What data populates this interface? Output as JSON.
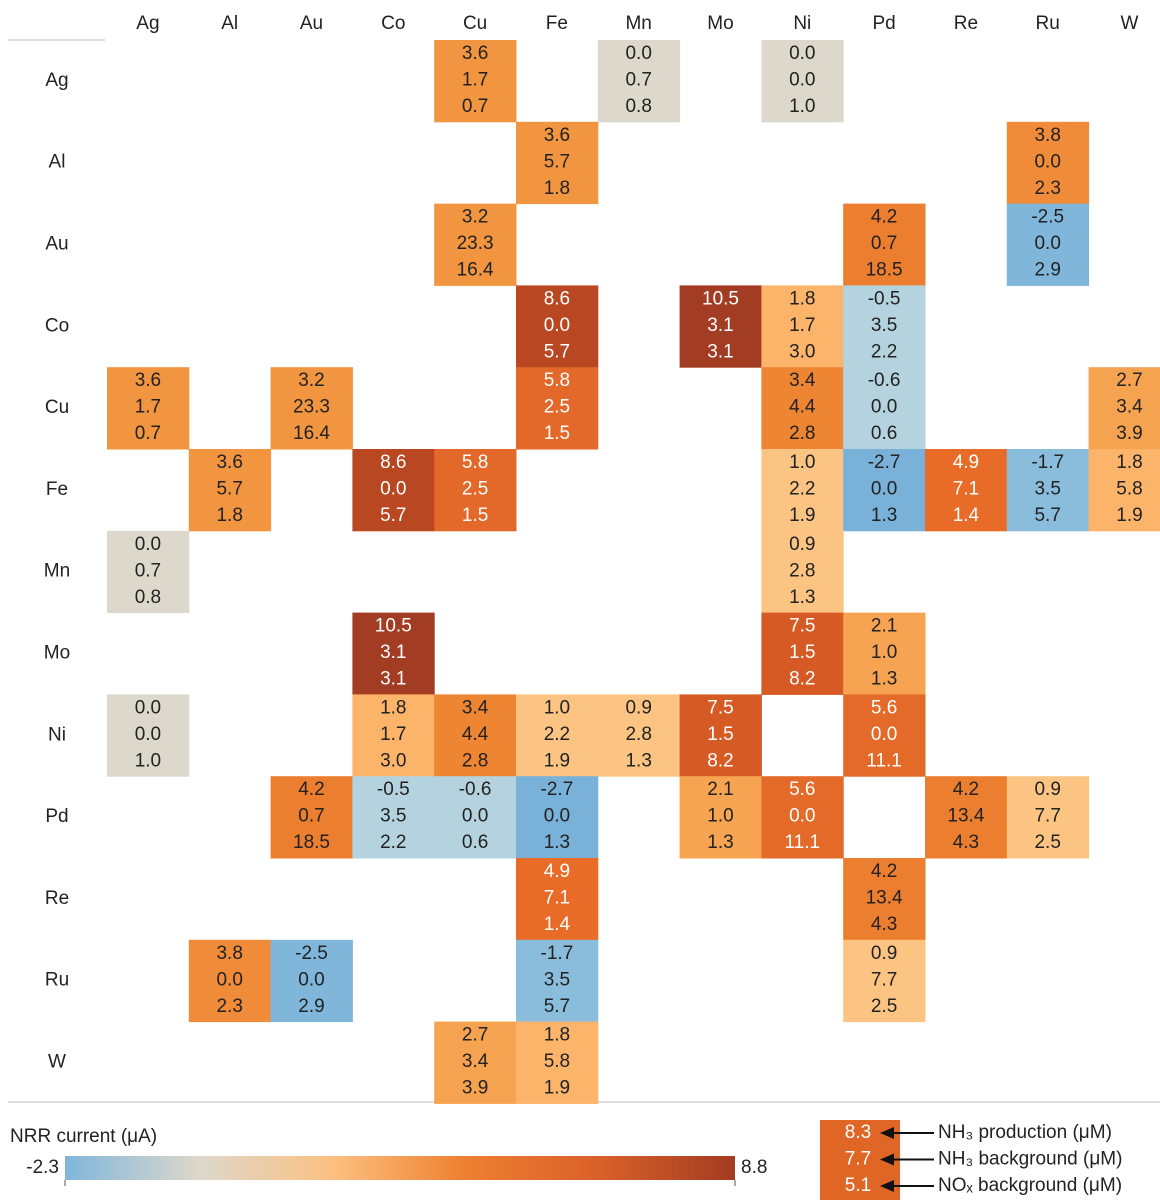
{
  "chart_data": {
    "type": "heatmap",
    "columns": [
      "Ag",
      "Al",
      "Au",
      "Co",
      "Cu",
      "Fe",
      "Mn",
      "Mo",
      "Ni",
      "Pd",
      "Re",
      "Ru",
      "W"
    ],
    "rows": [
      "Ag",
      "Al",
      "Au",
      "Co",
      "Cu",
      "Fe",
      "Mn",
      "Mo",
      "Ni",
      "Pd",
      "Re",
      "Ru",
      "W"
    ],
    "cells": [
      {
        "row": "Ag",
        "col": "Cu",
        "values": [
          3.6,
          1.7,
          0.7
        ],
        "value_labels": [
          "3.6",
          "1.7",
          "0.7"
        ],
        "color": "#f29540"
      },
      {
        "row": "Ag",
        "col": "Mn",
        "values": [
          0,
          0.7,
          0.8
        ],
        "value_labels": [
          "0.0",
          "0.7",
          "0.8"
        ],
        "color": "#dcd8cc"
      },
      {
        "row": "Ag",
        "col": "Ni",
        "values": [
          0,
          0,
          1
        ],
        "value_labels": [
          "0.0",
          "0.0",
          "1.0"
        ],
        "color": "#dcd8cc"
      },
      {
        "row": "Al",
        "col": "Fe",
        "values": [
          3.6,
          5.7,
          1.8
        ],
        "value_labels": [
          "3.6",
          "5.7",
          "1.8"
        ],
        "color": "#f29540"
      },
      {
        "row": "Al",
        "col": "Ru",
        "values": [
          3.8,
          0,
          2.3
        ],
        "value_labels": [
          "3.8",
          "0.0",
          "2.3"
        ],
        "color": "#f08c39"
      },
      {
        "row": "Au",
        "col": "Cu",
        "values": [
          3.2,
          23.3,
          16.4
        ],
        "value_labels": [
          "3.2",
          "23.3",
          "16.4"
        ],
        "color": "#f29540"
      },
      {
        "row": "Au",
        "col": "Pd",
        "values": [
          4.2,
          0.7,
          18.5
        ],
        "value_labels": [
          "4.2",
          "0.7",
          "18.5"
        ],
        "color": "#ec7e30"
      },
      {
        "row": "Au",
        "col": "Ru",
        "values": [
          -2.5,
          0,
          2.9
        ],
        "value_labels": [
          "-2.5",
          "0.0",
          "2.9"
        ],
        "color": "#7fb6da"
      },
      {
        "row": "Co",
        "col": "Fe",
        "values": [
          8.6,
          0,
          5.7
        ],
        "value_labels": [
          "8.6",
          "0.0",
          "5.7"
        ],
        "color": "#b84722"
      },
      {
        "row": "Co",
        "col": "Mo",
        "values": [
          10.5,
          3.1,
          3.1
        ],
        "value_labels": [
          "10.5",
          "3.1",
          "3.1"
        ],
        "color": "#a23c22"
      },
      {
        "row": "Co",
        "col": "Ni",
        "values": [
          1.8,
          1.7,
          3
        ],
        "value_labels": [
          "1.8",
          "1.7",
          "3.0"
        ],
        "color": "#fbb46a"
      },
      {
        "row": "Co",
        "col": "Pd",
        "values": [
          -0.5,
          3.5,
          2.2
        ],
        "value_labels": [
          "-0.5",
          "3.5",
          "2.2"
        ],
        "color": "#b4d3de"
      },
      {
        "row": "Cu",
        "col": "Ag",
        "values": [
          3.6,
          1.7,
          0.7
        ],
        "value_labels": [
          "3.6",
          "1.7",
          "0.7"
        ],
        "color": "#f29540"
      },
      {
        "row": "Cu",
        "col": "Au",
        "values": [
          3.2,
          23.3,
          16.4
        ],
        "value_labels": [
          "3.2",
          "23.3",
          "16.4"
        ],
        "color": "#f29540"
      },
      {
        "row": "Cu",
        "col": "Fe",
        "values": [
          5.8,
          2.5,
          1.5
        ],
        "value_labels": [
          "5.8",
          "2.5",
          "1.5"
        ],
        "color": "#e3692a"
      },
      {
        "row": "Cu",
        "col": "Ni",
        "values": [
          3.4,
          4.4,
          2.8
        ],
        "value_labels": [
          "3.4",
          "4.4",
          "2.8"
        ],
        "color": "#ee8532"
      },
      {
        "row": "Cu",
        "col": "Pd",
        "values": [
          -0.6,
          0,
          0.6
        ],
        "value_labels": [
          "-0.6",
          "0.0",
          "0.6"
        ],
        "color": "#b4d3de"
      },
      {
        "row": "Cu",
        "col": "W",
        "values": [
          2.7,
          3.4,
          3.9
        ],
        "value_labels": [
          "2.7",
          "3.4",
          "3.9"
        ],
        "color": "#f5a350"
      },
      {
        "row": "Fe",
        "col": "Al",
        "values": [
          3.6,
          5.7,
          1.8
        ],
        "value_labels": [
          "3.6",
          "5.7",
          "1.8"
        ],
        "color": "#f29540"
      },
      {
        "row": "Fe",
        "col": "Co",
        "values": [
          8.6,
          0,
          5.7
        ],
        "value_labels": [
          "8.6",
          "0.0",
          "5.7"
        ],
        "color": "#b84722"
      },
      {
        "row": "Fe",
        "col": "Cu",
        "values": [
          5.8,
          2.5,
          1.5
        ],
        "value_labels": [
          "5.8",
          "2.5",
          "1.5"
        ],
        "color": "#e3692a"
      },
      {
        "row": "Fe",
        "col": "Ni",
        "values": [
          1,
          2.2,
          1.9
        ],
        "value_labels": [
          "1.0",
          "2.2",
          "1.9"
        ],
        "color": "#fcc483"
      },
      {
        "row": "Fe",
        "col": "Pd",
        "values": [
          -2.7,
          0,
          1.3
        ],
        "value_labels": [
          "-2.7",
          "0.0",
          "1.3"
        ],
        "color": "#79b1d9"
      },
      {
        "row": "Fe",
        "col": "Re",
        "values": [
          4.9,
          7.1,
          1.4
        ],
        "value_labels": [
          "4.9",
          "7.1",
          "1.4"
        ],
        "color": "#e86c27"
      },
      {
        "row": "Fe",
        "col": "Ru",
        "values": [
          -1.7,
          3.5,
          5.7
        ],
        "value_labels": [
          "-1.7",
          "3.5",
          "5.7"
        ],
        "color": "#8abcdc"
      },
      {
        "row": "Fe",
        "col": "W",
        "values": [
          1.8,
          5.8,
          1.9
        ],
        "value_labels": [
          "1.8",
          "5.8",
          "1.9"
        ],
        "color": "#fbb46a"
      },
      {
        "row": "Mn",
        "col": "Ag",
        "values": [
          0,
          0.7,
          0.8
        ],
        "value_labels": [
          "0.0",
          "0.7",
          "0.8"
        ],
        "color": "#dcd8cc"
      },
      {
        "row": "Mn",
        "col": "Ni",
        "values": [
          0.9,
          2.8,
          1.3
        ],
        "value_labels": [
          "0.9",
          "2.8",
          "1.3"
        ],
        "color": "#fcc483"
      },
      {
        "row": "Mo",
        "col": "Co",
        "values": [
          10.5,
          3.1,
          3.1
        ],
        "value_labels": [
          "10.5",
          "3.1",
          "3.1"
        ],
        "color": "#a23c22"
      },
      {
        "row": "Mo",
        "col": "Ni",
        "values": [
          7.5,
          1.5,
          8.2
        ],
        "value_labels": [
          "7.5",
          "1.5",
          "8.2"
        ],
        "color": "#d65a24"
      },
      {
        "row": "Mo",
        "col": "Pd",
        "values": [
          2.1,
          1,
          1.3
        ],
        "value_labels": [
          "2.1",
          "1.0",
          "1.3"
        ],
        "color": "#f7a452"
      },
      {
        "row": "Ni",
        "col": "Ag",
        "values": [
          0,
          0,
          1
        ],
        "value_labels": [
          "0.0",
          "0.0",
          "1.0"
        ],
        "color": "#dcd8cc"
      },
      {
        "row": "Ni",
        "col": "Co",
        "values": [
          1.8,
          1.7,
          3
        ],
        "value_labels": [
          "1.8",
          "1.7",
          "3.0"
        ],
        "color": "#fbb46a"
      },
      {
        "row": "Ni",
        "col": "Cu",
        "values": [
          3.4,
          4.4,
          2.8
        ],
        "value_labels": [
          "3.4",
          "4.4",
          "2.8"
        ],
        "color": "#ee8532"
      },
      {
        "row": "Ni",
        "col": "Fe",
        "values": [
          1,
          2.2,
          1.9
        ],
        "value_labels": [
          "1.0",
          "2.2",
          "1.9"
        ],
        "color": "#fcc483"
      },
      {
        "row": "Ni",
        "col": "Mn",
        "values": [
          0.9,
          2.8,
          1.3
        ],
        "value_labels": [
          "0.9",
          "2.8",
          "1.3"
        ],
        "color": "#fcc483"
      },
      {
        "row": "Ni",
        "col": "Mo",
        "values": [
          7.5,
          1.5,
          8.2
        ],
        "value_labels": [
          "7.5",
          "1.5",
          "8.2"
        ],
        "color": "#d65a24"
      },
      {
        "row": "Ni",
        "col": "Pd",
        "values": [
          5.6,
          0,
          11.1
        ],
        "value_labels": [
          "5.6",
          "0.0",
          "11.1"
        ],
        "color": "#e36a28"
      },
      {
        "row": "Pd",
        "col": "Au",
        "values": [
          4.2,
          0.7,
          18.5
        ],
        "value_labels": [
          "4.2",
          "0.7",
          "18.5"
        ],
        "color": "#ec7e30"
      },
      {
        "row": "Pd",
        "col": "Co",
        "values": [
          -0.5,
          3.5,
          2.2
        ],
        "value_labels": [
          "-0.5",
          "3.5",
          "2.2"
        ],
        "color": "#b4d3de"
      },
      {
        "row": "Pd",
        "col": "Cu",
        "values": [
          -0.6,
          0,
          0.6
        ],
        "value_labels": [
          "-0.6",
          "0.0",
          "0.6"
        ],
        "color": "#b4d3de"
      },
      {
        "row": "Pd",
        "col": "Fe",
        "values": [
          -2.7,
          0,
          1.3
        ],
        "value_labels": [
          "-2.7",
          "0.0",
          "1.3"
        ],
        "color": "#79b1d9"
      },
      {
        "row": "Pd",
        "col": "Mo",
        "values": [
          2.1,
          1,
          1.3
        ],
        "value_labels": [
          "2.1",
          "1.0",
          "1.3"
        ],
        "color": "#f7a452"
      },
      {
        "row": "Pd",
        "col": "Ni",
        "values": [
          5.6,
          0,
          11.1
        ],
        "value_labels": [
          "5.6",
          "0.0",
          "11.1"
        ],
        "color": "#e36a28"
      },
      {
        "row": "Pd",
        "col": "Re",
        "values": [
          4.2,
          13.4,
          4.3
        ],
        "value_labels": [
          "4.2",
          "13.4",
          "4.3"
        ],
        "color": "#ec7e30"
      },
      {
        "row": "Pd",
        "col": "Ru",
        "values": [
          0.9,
          7.7,
          2.5
        ],
        "value_labels": [
          "0.9",
          "7.7",
          "2.5"
        ],
        "color": "#fcc483"
      },
      {
        "row": "Re",
        "col": "Fe",
        "values": [
          4.9,
          7.1,
          1.4
        ],
        "value_labels": [
          "4.9",
          "7.1",
          "1.4"
        ],
        "color": "#e86c27"
      },
      {
        "row": "Re",
        "col": "Pd",
        "values": [
          4.2,
          13.4,
          4.3
        ],
        "value_labels": [
          "4.2",
          "13.4",
          "4.3"
        ],
        "color": "#ec7e30"
      },
      {
        "row": "Ru",
        "col": "Al",
        "values": [
          3.8,
          0,
          2.3
        ],
        "value_labels": [
          "3.8",
          "0.0",
          "2.3"
        ],
        "color": "#f08c39"
      },
      {
        "row": "Ru",
        "col": "Au",
        "values": [
          -2.5,
          0,
          2.9
        ],
        "value_labels": [
          "-2.5",
          "0.0",
          "2.9"
        ],
        "color": "#7fb6da"
      },
      {
        "row": "Ru",
        "col": "Fe",
        "values": [
          -1.7,
          3.5,
          5.7
        ],
        "value_labels": [
          "-1.7",
          "3.5",
          "5.7"
        ],
        "color": "#8abcdc"
      },
      {
        "row": "Ru",
        "col": "Pd",
        "values": [
          0.9,
          7.7,
          2.5
        ],
        "value_labels": [
          "0.9",
          "7.7",
          "2.5"
        ],
        "color": "#fcc483"
      },
      {
        "row": "W",
        "col": "Cu",
        "values": [
          2.7,
          3.4,
          3.9
        ],
        "value_labels": [
          "2.7",
          "3.4",
          "3.9"
        ],
        "color": "#f5a350"
      },
      {
        "row": "W",
        "col": "Fe",
        "values": [
          1.8,
          5.8,
          1.9
        ],
        "value_labels": [
          "1.8",
          "5.8",
          "1.9"
        ],
        "color": "#fbb46a"
      }
    ],
    "colorbar": {
      "label": "NRR current (μA)",
      "lim": [
        -2.3,
        8.8
      ],
      "ticks": [
        -2.3,
        8.8
      ],
      "colors": [
        "#7fb6da",
        "#dcd8cc",
        "#fcc080",
        "#ee7f30",
        "#d8602a",
        "#a23c22"
      ]
    },
    "legend": {
      "values": [
        8.3,
        7.7,
        5.1
      ],
      "labels": [
        "NH₃ production (μM)",
        "NH₃ background (μM)",
        "NOₓ background (μM)"
      ],
      "color": "#e06626"
    }
  }
}
